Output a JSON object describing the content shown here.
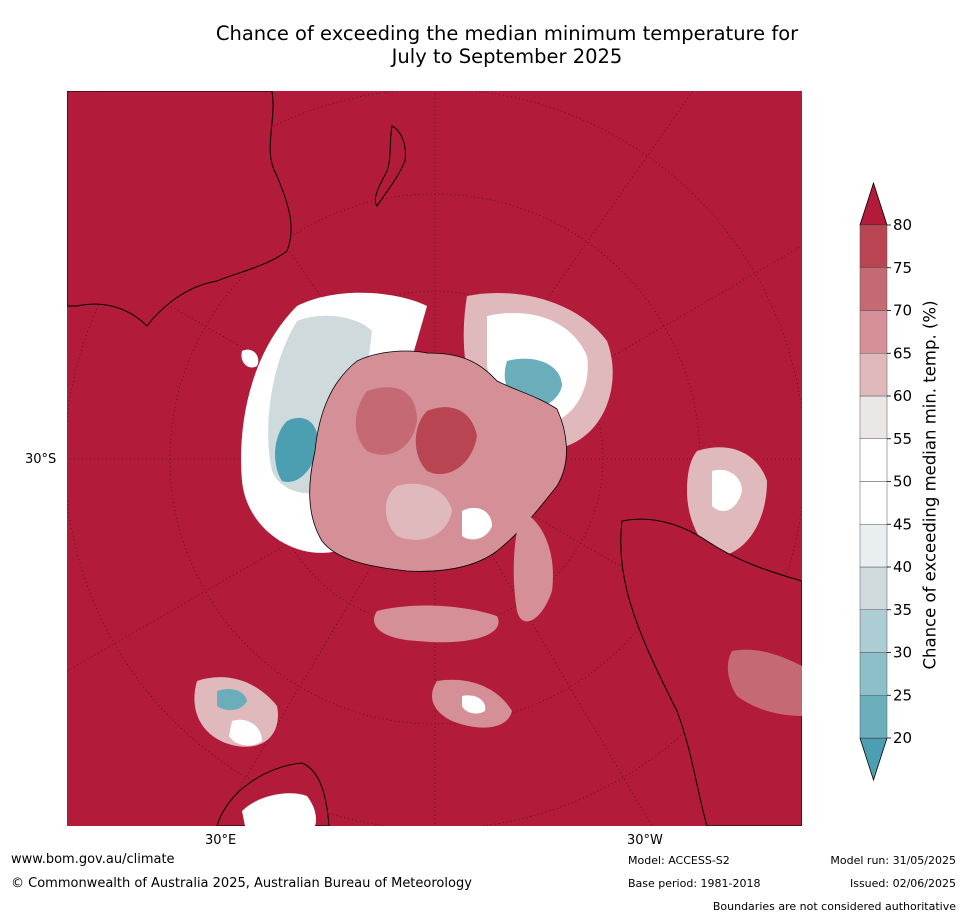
{
  "title_line1": "Chance of exceeding the median minimum temperature for",
  "title_line2": "July to September 2025",
  "map_labels": {
    "lat": "30°S",
    "lon_left": "30°E",
    "lon_right": "30°W"
  },
  "colorbar": {
    "label": "Chance of exceeding median min. temp. (%)",
    "ticks": [
      "20",
      "25",
      "30",
      "35",
      "40",
      "45",
      "50",
      "55",
      "60",
      "65",
      "70",
      "75",
      "80"
    ],
    "colors": [
      "#4c9fb0",
      "#6aaebc",
      "#8cbfca",
      "#adcdd4",
      "#cfdadd",
      "#e9eef0",
      "#ffffff",
      "#ffffff",
      "#ebe7e7",
      "#e0b9bd",
      "#d48f97",
      "#c56a74",
      "#b94553",
      "#b21b3a"
    ]
  },
  "footer": {
    "website": "www.bom.gov.au/climate",
    "copyright": "© Commonwealth of Australia 2025, Australian Bureau of Meteorology",
    "model": "Model: ACCESS-S2",
    "base_period": "Base period: 1981-2018",
    "model_run": "Model run: 31/05/2025",
    "issued": "Issued: 02/06/2025",
    "disclaimer": "Boundaries are not considered authoritative"
  }
}
